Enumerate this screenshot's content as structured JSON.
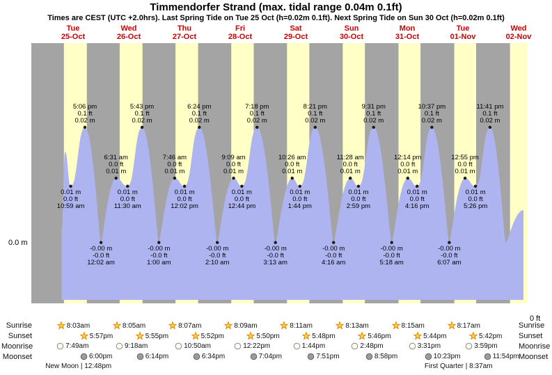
{
  "chart_data": {
    "type": "area",
    "title": "Timmendorfer Strand (max. tidal range 0.04m 0.1ft)",
    "subtitle": "Times are CEST (UTC +2.0hrs). Last Spring Tide on Tue 25 Oct (h=0.02m 0.1ft). Next Spring Tide on Sun 30 Oct (h=0.02m 0.1ft)",
    "y_axis": {
      "left_label": "0.0 m",
      "right_label": "0 ft",
      "unit": "m",
      "range_m": [
        -0.012,
        0.036
      ]
    },
    "x_days": [
      {
        "dow": "Tue",
        "date": "25-Oct"
      },
      {
        "dow": "Wed",
        "date": "26-Oct"
      },
      {
        "dow": "Thu",
        "date": "27-Oct"
      },
      {
        "dow": "Fri",
        "date": "28-Oct"
      },
      {
        "dow": "Sat",
        "date": "29-Oct"
      },
      {
        "dow": "Sun",
        "date": "30-Oct"
      },
      {
        "dow": "Mon",
        "date": "31-Oct"
      },
      {
        "dow": "Tue",
        "date": "01-Nov"
      },
      {
        "dow": "Wed",
        "date": "02-Nov"
      }
    ],
    "tide_events": [
      {
        "day": 0,
        "time": "10:59 am",
        "ft": "0.0 ft",
        "m": "0.01 m",
        "height_m": 0.009,
        "type": "low"
      },
      {
        "day": 0,
        "time": "5:06 pm",
        "ft": "0.1 ft",
        "m": "0.02 m",
        "height_m": 0.02,
        "type": "high"
      },
      {
        "day": 1,
        "time": "12:02 am",
        "ft": "-0.0 ft",
        "m": "-0.00 m",
        "height_m": -0.0015,
        "type": "low"
      },
      {
        "day": 1,
        "time": "6:31 am",
        "ft": "0.0 ft",
        "m": "0.01 m",
        "height_m": 0.0105,
        "type": "high"
      },
      {
        "day": 1,
        "time": "11:30 am",
        "ft": "0.0 ft",
        "m": "0.01 m",
        "height_m": 0.009,
        "type": "low"
      },
      {
        "day": 1,
        "time": "5:43 pm",
        "ft": "0.1 ft",
        "m": "0.02 m",
        "height_m": 0.02,
        "type": "high"
      },
      {
        "day": 2,
        "time": "1:00 am",
        "ft": "-0.0 ft",
        "m": "-0.00 m",
        "height_m": -0.0015,
        "type": "low"
      },
      {
        "day": 2,
        "time": "7:46 am",
        "ft": "0.0 ft",
        "m": "0.01 m",
        "height_m": 0.0105,
        "type": "high"
      },
      {
        "day": 2,
        "time": "12:02 pm",
        "ft": "0.0 ft",
        "m": "0.01 m",
        "height_m": 0.009,
        "type": "low"
      },
      {
        "day": 2,
        "time": "6:24 pm",
        "ft": "0.1 ft",
        "m": "0.02 m",
        "height_m": 0.02,
        "type": "high"
      },
      {
        "day": 3,
        "time": "2:10 am",
        "ft": "-0.0 ft",
        "m": "-0.00 m",
        "height_m": -0.0015,
        "type": "low"
      },
      {
        "day": 3,
        "time": "9:09 am",
        "ft": "0.0 ft",
        "m": "0.01 m",
        "height_m": 0.0105,
        "type": "high"
      },
      {
        "day": 3,
        "time": "12:44 pm",
        "ft": "0.0 ft",
        "m": "0.01 m",
        "height_m": 0.009,
        "type": "low"
      },
      {
        "day": 3,
        "time": "7:18 pm",
        "ft": "0.1 ft",
        "m": "0.02 m",
        "height_m": 0.02,
        "type": "high"
      },
      {
        "day": 4,
        "time": "3:13 am",
        "ft": "-0.0 ft",
        "m": "-0.00 m",
        "height_m": -0.0015,
        "type": "low"
      },
      {
        "day": 4,
        "time": "10:26 am",
        "ft": "0.0 ft",
        "m": "0.01 m",
        "height_m": 0.0105,
        "type": "high"
      },
      {
        "day": 4,
        "time": "1:44 pm",
        "ft": "0.0 ft",
        "m": "0.01 m",
        "height_m": 0.009,
        "type": "low"
      },
      {
        "day": 4,
        "time": "8:21 pm",
        "ft": "0.1 ft",
        "m": "0.02 m",
        "height_m": 0.02,
        "type": "high"
      },
      {
        "day": 5,
        "time": "4:16 am",
        "ft": "-0.0 ft",
        "m": "-0.00 m",
        "height_m": -0.0015,
        "type": "low"
      },
      {
        "day": 5,
        "time": "11:28 am",
        "ft": "0.0 ft",
        "m": "0.01 m",
        "height_m": 0.0105,
        "type": "high"
      },
      {
        "day": 5,
        "time": "2:59 pm",
        "ft": "0.0 ft",
        "m": "0.01 m",
        "height_m": 0.009,
        "type": "low"
      },
      {
        "day": 5,
        "time": "9:31 pm",
        "ft": "0.1 ft",
        "m": "0.02 m",
        "height_m": 0.02,
        "type": "high"
      },
      {
        "day": 6,
        "time": "5:18 am",
        "ft": "-0.0 ft",
        "m": "-0.00 m",
        "height_m": -0.0015,
        "type": "low"
      },
      {
        "day": 6,
        "time": "12:14 pm",
        "ft": "0.0 ft",
        "m": "0.01 m",
        "height_m": 0.0105,
        "type": "high"
      },
      {
        "day": 6,
        "time": "4:16 pm",
        "ft": "0.0 ft",
        "m": "0.01 m",
        "height_m": 0.009,
        "type": "low"
      },
      {
        "day": 6,
        "time": "10:37 pm",
        "ft": "0.1 ft",
        "m": "0.02 m",
        "height_m": 0.02,
        "type": "high"
      },
      {
        "day": 7,
        "time": "6:07 am",
        "ft": "-0.0 ft",
        "m": "-0.00 m",
        "height_m": -0.0015,
        "type": "low"
      },
      {
        "day": 7,
        "time": "12:55 pm",
        "ft": "0.0 ft",
        "m": "0.01 m",
        "height_m": 0.0105,
        "type": "high"
      },
      {
        "day": 7,
        "time": "5:26 pm",
        "ft": "0.0 ft",
        "m": "0.01 m",
        "height_m": 0.009,
        "type": "low"
      },
      {
        "day": 7,
        "time": "11:41 pm",
        "ft": "0.1 ft",
        "m": "0.02 m",
        "height_m": 0.02,
        "type": "high"
      }
    ],
    "sun_moon": {
      "sunrise": {
        "label": "Sunrise",
        "items": [
          {
            "day": 0,
            "time": "8:03am"
          },
          {
            "day": 1,
            "time": "8:05am"
          },
          {
            "day": 2,
            "time": "8:07am"
          },
          {
            "day": 3,
            "time": "8:09am"
          },
          {
            "day": 4,
            "time": "8:11am"
          },
          {
            "day": 5,
            "time": "8:13am"
          },
          {
            "day": 6,
            "time": "8:15am"
          },
          {
            "day": 7,
            "time": "8:17am"
          }
        ]
      },
      "sunset": {
        "label": "Sunset",
        "items": [
          {
            "day": 0,
            "time": "5:57pm"
          },
          {
            "day": 1,
            "time": "5:55pm"
          },
          {
            "day": 2,
            "time": "5:52pm"
          },
          {
            "day": 3,
            "time": "5:50pm"
          },
          {
            "day": 4,
            "time": "5:48pm"
          },
          {
            "day": 5,
            "time": "5:46pm"
          },
          {
            "day": 6,
            "time": "5:44pm"
          },
          {
            "day": 7,
            "time": "5:42pm"
          }
        ]
      },
      "moonrise": {
        "label": "Moonrise",
        "items": [
          {
            "day": 0,
            "time": "7:49am"
          },
          {
            "day": 1,
            "time": "9:18am"
          },
          {
            "day": 2,
            "time": "10:50am"
          },
          {
            "day": 3,
            "time": "12:22pm"
          },
          {
            "day": 4,
            "time": "1:44pm"
          },
          {
            "day": 5,
            "time": "2:48pm"
          },
          {
            "day": 6,
            "time": "3:31pm"
          },
          {
            "day": 7,
            "time": "3:59pm"
          }
        ]
      },
      "moonset": {
        "label": "Moonset",
        "items": [
          {
            "day": 0,
            "time": "6:00pm"
          },
          {
            "day": 1,
            "time": "6:14pm"
          },
          {
            "day": 2,
            "time": "6:34pm"
          },
          {
            "day": 3,
            "time": "7:04pm"
          },
          {
            "day": 4,
            "time": "7:51pm"
          },
          {
            "day": 5,
            "time": "8:58pm"
          },
          {
            "day": 6,
            "time": "10:23pm"
          },
          {
            "day": 7,
            "time": "11:54pm"
          }
        ]
      }
    },
    "moon_phases": [
      {
        "day": 0,
        "time": "12:48pm",
        "label": "New Moon | 12:48pm"
      },
      {
        "day": 7,
        "time": "8:37am",
        "label": "First Quarter | 8:37am"
      }
    ],
    "colors": {
      "daylight": "#ffffc6",
      "night": "#a4a4a4",
      "tide": "#aeb4f0",
      "day_label": "#cc0000",
      "marker": "#1a1a1a"
    },
    "legend_position": "none",
    "grid": false
  }
}
